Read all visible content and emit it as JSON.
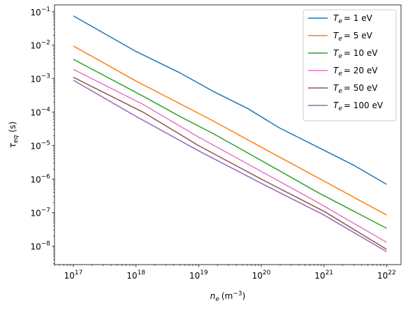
{
  "chart_data": {
    "type": "line",
    "xscale": "log",
    "yscale": "log",
    "xlabel_base": "n",
    "xlabel_sub": "e",
    "xlabel_unit": "(m",
    "xlabel_unit_sup": "−3",
    "xlabel_close": ")",
    "ylabel_base": "τ",
    "ylabel_sub": "eq",
    "ylabel_unit": "(s)",
    "xlim": [
      5e+16,
      1.7e+22
    ],
    "ylim": [
      2.8e-09,
      0.16
    ],
    "xtick_exponents": [
      "17",
      "18",
      "19",
      "20",
      "21",
      "22"
    ],
    "ytick_exponents": [
      "−8",
      "−7",
      "−6",
      "−5",
      "−4",
      "−3",
      "−2",
      "−1"
    ],
    "tick_base": "10",
    "legend_position": "top-right",
    "legend_prefix": "T",
    "legend_prefix_sub": "e",
    "series": [
      {
        "name": "T_e = 1 eV",
        "label_value": "= 1 eV",
        "color": "#1f77b4",
        "x": [
          1e+17,
          1e+18,
          5e+18,
          1.7e+19,
          6e+19,
          2e+20,
          8e+20,
          3e+21,
          1e+22
        ],
        "y": [
          0.075,
          0.0065,
          0.0015,
          0.00042,
          0.00013,
          3.3e-05,
          9e-06,
          2.6e-06,
          7e-07
        ]
      },
      {
        "name": "T_e = 5 eV",
        "label_value": "= 5 eV",
        "color": "#ff7f0e",
        "x": [
          1e+17,
          1e+18,
          5e+18,
          1.7e+19,
          1e+20,
          8e+20,
          1e+22
        ],
        "y": [
          0.0095,
          0.00085,
          0.00018,
          5.5e-05,
          9e-06,
          1.1e-06,
          8.5e-08
        ]
      },
      {
        "name": "T_e = 10 eV",
        "label_value": "= 10 eV",
        "color": "#2ca02c",
        "x": [
          1e+17,
          1.3e+18,
          5e+18,
          1.7e+19,
          1e+20,
          8e+20,
          1e+22
        ],
        "y": [
          0.0038,
          0.0003,
          7.5e-05,
          2.3e-05,
          3.6e-06,
          4e-07,
          3.4e-08
        ]
      },
      {
        "name": "T_e = 20 eV",
        "label_value": "= 20 eV",
        "color": "#e377c2",
        "x": [
          1e+17,
          1.3e+18,
          1e+19,
          1e+20,
          8e+20,
          1e+22
        ],
        "y": [
          0.0019,
          0.00017,
          1.8e-05,
          1.7e-06,
          2e-07,
          1.3e-08
        ]
      },
      {
        "name": "T_e = 50 eV",
        "label_value": "= 50 eV",
        "color": "#8c564b",
        "x": [
          1e+17,
          1.3e+18,
          1e+19,
          1e+20,
          1e+21,
          1e+22
        ],
        "y": [
          0.0011,
          0.0001,
          1e-05,
          1e-06,
          1.1e-07,
          8e-09
        ]
      },
      {
        "name": "T_e = 100 eV",
        "label_value": "= 100 eV",
        "color": "#9467bd",
        "x": [
          1e+17,
          1e+18,
          1e+19,
          1e+20,
          1e+21,
          1e+22
        ],
        "y": [
          0.0009,
          7.5e-05,
          7e-06,
          7.5e-07,
          8.5e-08,
          6.8e-09
        ]
      }
    ]
  }
}
